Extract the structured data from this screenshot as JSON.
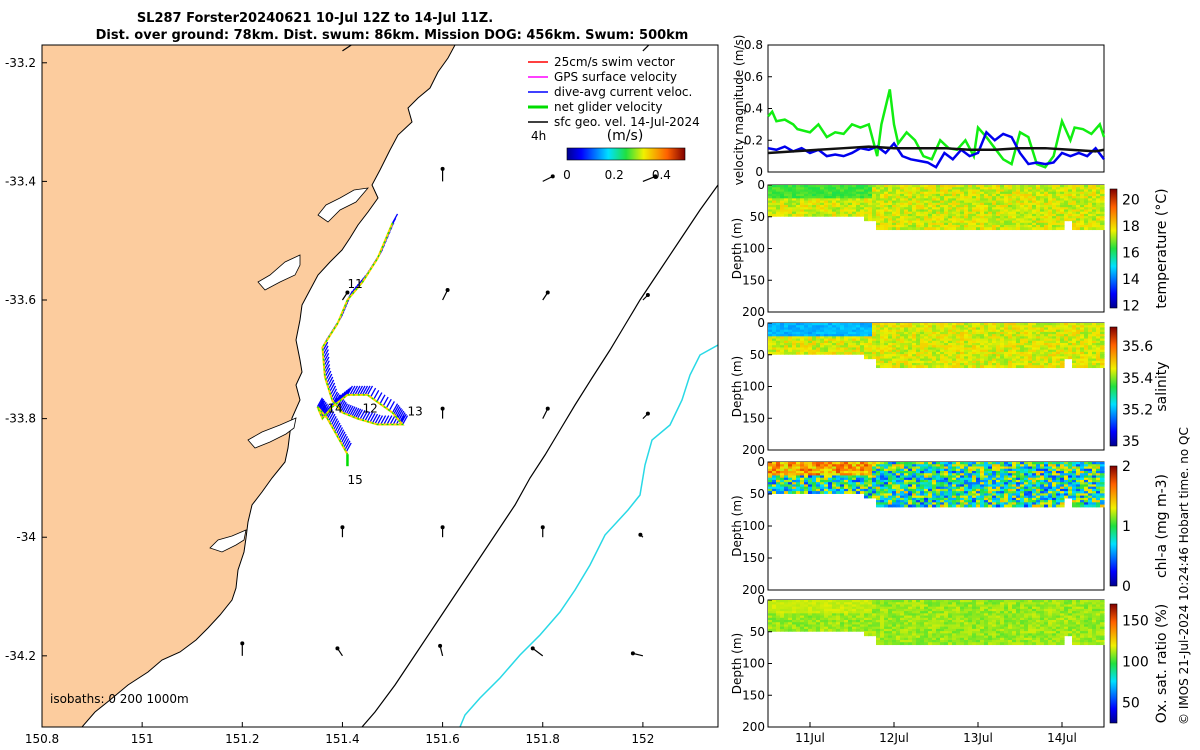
{
  "title": {
    "line1": "SL287 Forster20240621 10-Jul 12Z to 14-Jul 11Z.",
    "line2": "Dist. over ground: 78km. Dist. swum: 86km. Mission DOG: 456km. Swum: 500km"
  },
  "credit": "© IMOS 21-Jul-2024 10:24:46 Hobart time. no QC",
  "map": {
    "xlim": [
      150.8,
      152.15
    ],
    "ylim": [
      -34.32,
      -33.17
    ],
    "xticks": [
      "150.8",
      "151",
      "151.2",
      "151.4",
      "151.6",
      "151.8",
      "152"
    ],
    "xtick_values": [
      150.8,
      151.0,
      151.2,
      151.4,
      151.6,
      151.8,
      152.0
    ],
    "yticks": [
      "-33.2",
      "-33.4",
      "-33.6",
      "-33.8",
      "-34",
      "-34.2"
    ],
    "ytick_values": [
      -33.2,
      -33.4,
      -33.6,
      -33.8,
      -34.0,
      -34.2
    ],
    "colors": {
      "land": "#fccc9e",
      "iso200": "#000000",
      "iso1000": "#29d9e6",
      "track": "#0000ff",
      "net": "#00ee00"
    },
    "legend": [
      {
        "label": "25cm/s swim vector",
        "color": "#ff0000"
      },
      {
        "label": "GPS surface velocity",
        "color": "#ff00ff"
      },
      {
        "label": "dive-avg current veloc.",
        "color": "#0000ff"
      },
      {
        "label": "net glider velocity",
        "color": "#00dd00"
      },
      {
        "label": "sfc geo. vel. 14-Jul-2024",
        "color": "#000000"
      }
    ],
    "colorbar": {
      "caption": "4h",
      "units": "(m/s)",
      "ticks": [
        "0",
        "0.2",
        "0.4"
      ],
      "tick_values": [
        0,
        0.2,
        0.4
      ],
      "range": [
        0,
        0.5
      ]
    },
    "day_labels": [
      {
        "text": "11",
        "lon": 151.41,
        "lat": -33.58
      },
      {
        "text": "12",
        "lon": 151.44,
        "lat": -33.79
      },
      {
        "text": "13",
        "lon": 151.53,
        "lat": -33.795
      },
      {
        "text": "14",
        "lon": 151.37,
        "lat": -33.79
      },
      {
        "text": "15",
        "lon": 151.41,
        "lat": -33.91
      }
    ],
    "isobath_label": "isobaths: 0   200  1000m",
    "track": [
      [
        151.5,
        -33.47
      ],
      [
        151.47,
        -33.53
      ],
      [
        151.44,
        -33.57
      ],
      [
        151.41,
        -33.6
      ],
      [
        151.39,
        -33.64
      ],
      [
        151.36,
        -33.68
      ],
      [
        151.365,
        -33.73
      ],
      [
        151.38,
        -33.77
      ],
      [
        151.4,
        -33.79
      ],
      [
        151.43,
        -33.8
      ],
      [
        151.47,
        -33.81
      ],
      [
        151.52,
        -33.81
      ],
      [
        151.5,
        -33.79
      ],
      [
        151.45,
        -33.76
      ],
      [
        151.41,
        -33.76
      ],
      [
        151.38,
        -33.78
      ],
      [
        151.36,
        -33.8
      ],
      [
        151.35,
        -33.78
      ],
      [
        151.37,
        -33.8
      ],
      [
        151.39,
        -33.83
      ],
      [
        151.41,
        -33.86
      ]
    ],
    "arrows": [
      {
        "lon": 151.4,
        "lat": -33.18,
        "u": 0.03,
        "v": 0.02
      },
      {
        "lon": 152.0,
        "lat": -33.18,
        "u": 0.02,
        "v": 0.02
      },
      {
        "lon": 151.6,
        "lat": -33.4,
        "u": 0.0,
        "v": 0.025
      },
      {
        "lon": 151.8,
        "lat": -33.4,
        "u": 0.02,
        "v": 0.01
      },
      {
        "lon": 152.0,
        "lat": -33.4,
        "u": 0.025,
        "v": 0.01
      },
      {
        "lon": 151.4,
        "lat": -33.6,
        "u": 0.01,
        "v": 0.015
      },
      {
        "lon": 151.6,
        "lat": -33.6,
        "u": 0.01,
        "v": 0.02
      },
      {
        "lon": 151.8,
        "lat": -33.6,
        "u": 0.01,
        "v": 0.015
      },
      {
        "lon": 152.0,
        "lat": -33.6,
        "u": 0.01,
        "v": 0.01
      },
      {
        "lon": 151.6,
        "lat": -33.8,
        "u": 0.0,
        "v": 0.02
      },
      {
        "lon": 151.8,
        "lat": -33.8,
        "u": 0.01,
        "v": 0.02
      },
      {
        "lon": 152.0,
        "lat": -33.8,
        "u": 0.01,
        "v": 0.01
      },
      {
        "lon": 151.4,
        "lat": -34.0,
        "u": 0.0,
        "v": 0.02
      },
      {
        "lon": 151.6,
        "lat": -34.0,
        "u": 0.0,
        "v": 0.02
      },
      {
        "lon": 151.8,
        "lat": -34.0,
        "u": 0.0,
        "v": 0.02
      },
      {
        "lon": 152.0,
        "lat": -34.0,
        "u": -0.005,
        "v": 0.005
      },
      {
        "lon": 151.2,
        "lat": -34.2,
        "u": 0.0,
        "v": 0.025
      },
      {
        "lon": 151.4,
        "lat": -34.2,
        "u": -0.01,
        "v": 0.015
      },
      {
        "lon": 151.6,
        "lat": -34.2,
        "u": -0.005,
        "v": 0.02
      },
      {
        "lon": 151.8,
        "lat": -34.2,
        "u": -0.02,
        "v": 0.015
      },
      {
        "lon": 152.0,
        "lat": -34.2,
        "u": -0.02,
        "v": 0.005
      }
    ]
  },
  "velocity_plot": {
    "ylabel": "velocity magnitude (m/s)",
    "ylim": [
      0,
      0.8
    ],
    "yticks": [
      "0",
      "0.2",
      "0.4",
      "0.6",
      "0.8"
    ],
    "ytick_values": [
      0,
      0.2,
      0.4,
      0.6,
      0.8
    ],
    "xlim": [
      0,
      4
    ],
    "series": [
      {
        "name": "net glider velocity",
        "color": "#11ee11",
        "x": [
          0,
          0.05,
          0.1,
          0.2,
          0.3,
          0.35,
          0.5,
          0.6,
          0.7,
          0.8,
          0.9,
          1.0,
          1.1,
          1.2,
          1.3,
          1.35,
          1.45,
          1.5,
          1.55,
          1.65,
          1.75,
          1.85,
          1.95,
          2.05,
          2.15,
          2.25,
          2.35,
          2.45,
          2.5,
          2.6,
          2.7,
          2.8,
          2.9,
          3.0,
          3.1,
          3.2,
          3.3,
          3.4,
          3.5,
          3.6,
          3.65,
          3.75,
          3.85,
          3.95,
          4.0
        ],
        "y": [
          0.35,
          0.38,
          0.32,
          0.33,
          0.3,
          0.27,
          0.25,
          0.3,
          0.22,
          0.25,
          0.24,
          0.3,
          0.28,
          0.3,
          0.1,
          0.3,
          0.52,
          0.3,
          0.18,
          0.25,
          0.2,
          0.1,
          0.08,
          0.2,
          0.15,
          0.14,
          0.2,
          0.1,
          0.28,
          0.22,
          0.15,
          0.08,
          0.05,
          0.25,
          0.22,
          0.05,
          0.03,
          0.1,
          0.32,
          0.2,
          0.28,
          0.27,
          0.24,
          0.3,
          0.22
        ]
      },
      {
        "name": "dive-avg current veloc.",
        "color": "#0000ee",
        "x": [
          0,
          0.1,
          0.2,
          0.3,
          0.4,
          0.5,
          0.6,
          0.7,
          0.8,
          0.9,
          1.0,
          1.1,
          1.2,
          1.3,
          1.4,
          1.5,
          1.6,
          1.7,
          1.8,
          1.9,
          2.0,
          2.1,
          2.2,
          2.3,
          2.4,
          2.5,
          2.6,
          2.7,
          2.8,
          2.9,
          3.0,
          3.1,
          3.2,
          3.3,
          3.4,
          3.5,
          3.6,
          3.7,
          3.8,
          3.9,
          4.0
        ],
        "y": [
          0.15,
          0.14,
          0.16,
          0.13,
          0.15,
          0.12,
          0.14,
          0.1,
          0.11,
          0.1,
          0.12,
          0.15,
          0.14,
          0.16,
          0.12,
          0.18,
          0.1,
          0.08,
          0.07,
          0.06,
          0.03,
          0.12,
          0.08,
          0.14,
          0.1,
          0.12,
          0.25,
          0.2,
          0.24,
          0.22,
          0.12,
          0.05,
          0.06,
          0.05,
          0.06,
          0.12,
          0.1,
          0.12,
          0.1,
          0.15,
          0.08
        ]
      },
      {
        "name": "sfc geo. vel.",
        "color": "#111111",
        "x": [
          0,
          0.3,
          0.6,
          0.9,
          1.2,
          1.5,
          1.8,
          2.1,
          2.4,
          2.7,
          3.0,
          3.3,
          3.6,
          3.9,
          4.0
        ],
        "y": [
          0.12,
          0.13,
          0.14,
          0.15,
          0.16,
          0.15,
          0.15,
          0.15,
          0.14,
          0.14,
          0.15,
          0.15,
          0.14,
          0.13,
          0.14
        ]
      }
    ]
  },
  "sections": [
    {
      "label": "temperature (°C)",
      "cticks": [
        "12",
        "14",
        "16",
        "18",
        "20"
      ],
      "ctick_values": [
        12,
        14,
        16,
        18,
        20
      ],
      "crange": [
        11.8,
        20.8
      ],
      "base": 17.5,
      "noise": 0.6,
      "shallow": 16.5
    },
    {
      "label": "salinity",
      "cticks": [
        "35",
        "35.2",
        "35.4",
        "35.6"
      ],
      "ctick_values": [
        35,
        35.2,
        35.4,
        35.6
      ],
      "crange": [
        34.97,
        35.72
      ],
      "base": 35.45,
      "noise": 0.05,
      "shallow": 35.2
    },
    {
      "label": "chl-a (mg m-3)",
      "cticks": [
        "0",
        "1",
        "2"
      ],
      "ctick_values": [
        0,
        1,
        2
      ],
      "crange": [
        0,
        2
      ],
      "base": 0.9,
      "noise": 0.55,
      "shallow": 1.5
    },
    {
      "label": "Ox. sat. ratio (%)",
      "cticks": [
        "50",
        "100",
        "150"
      ],
      "ctick_values": [
        50,
        100,
        150
      ],
      "crange": [
        25,
        170
      ],
      "base": 110,
      "noise": 6,
      "shallow": 115
    }
  ],
  "section_axes": {
    "ylabel": "Depth (m)",
    "yticks": [
      "0",
      "50",
      "100",
      "150",
      "200"
    ],
    "ytick_values": [
      0,
      50,
      100,
      150,
      200
    ],
    "ylim": [
      0,
      200
    ],
    "xticks": [
      "11Jul",
      "12Jul",
      "13Jul",
      "14Jul"
    ],
    "xtick_values": [
      0.5,
      1.5,
      2.5,
      3.5
    ]
  }
}
